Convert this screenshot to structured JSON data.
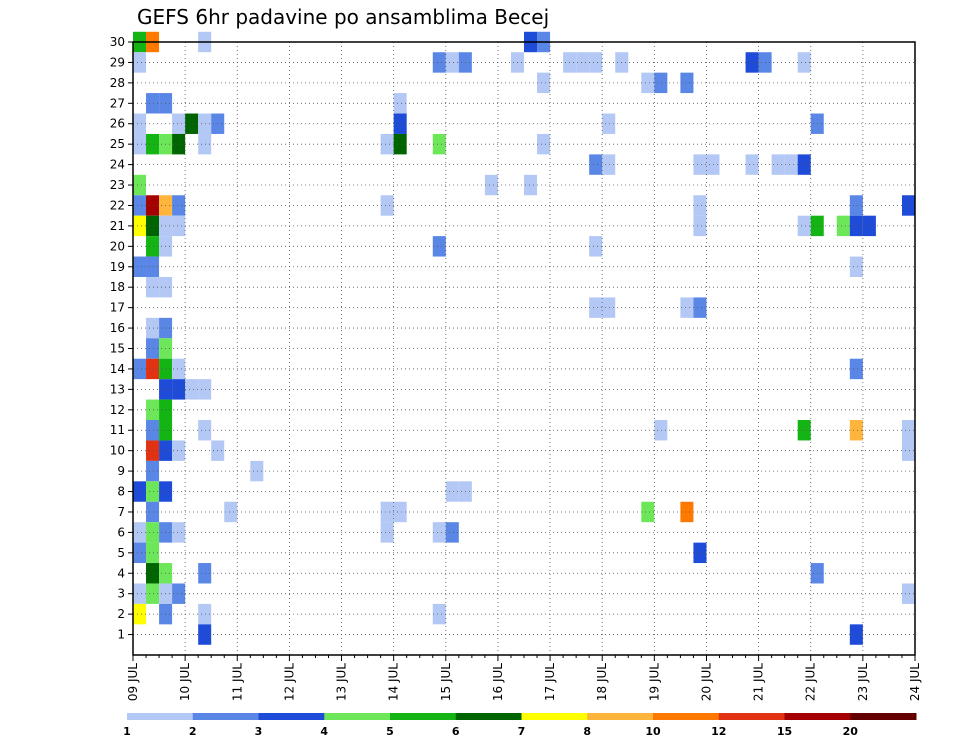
{
  "chart_data": {
    "type": "heatmap",
    "title": "GEFS 6hr padavine po ansamblima Becej",
    "xlabel": "",
    "ylabel": "",
    "x_ticks": [
      "09 JUL",
      "10 JUL",
      "11 JUL",
      "12 JUL",
      "13 JUL",
      "14 JUL",
      "15 JUL",
      "16 JUL",
      "17 JUL",
      "18 JUL",
      "19 JUL",
      "20 JUL",
      "21 JUL",
      "22 JUL",
      "23 JUL",
      "24 JUL"
    ],
    "y_ticks": [
      "1",
      "2",
      "3",
      "4",
      "5",
      "6",
      "7",
      "8",
      "9",
      "10",
      "11",
      "12",
      "13",
      "14",
      "15",
      "16",
      "17",
      "18",
      "19",
      "20",
      "21",
      "22",
      "23",
      "24",
      "25",
      "26",
      "27",
      "28",
      "29",
      "30"
    ],
    "xlim_days": [
      0,
      15
    ],
    "ylim_members": [
      0,
      30
    ],
    "grid": "dotted",
    "levels": [
      "1",
      "2",
      "3",
      "4",
      "5",
      "6",
      "7",
      "8",
      "10",
      "12",
      "15",
      "20"
    ],
    "colors": [
      "#b4c8f5",
      "#5a87e6",
      "#1e4bd7",
      "#6ee65a",
      "#14b414",
      "#006400",
      "#ffff00",
      "#ffb43c",
      "#ff7800",
      "#e13214",
      "#a50000",
      "#640000"
    ],
    "cells": [
      {
        "member": 30,
        "day": 0.125,
        "level": 4
      },
      {
        "member": 30,
        "day": 0.375,
        "level": 8
      },
      {
        "member": 30,
        "day": 1.375,
        "level": 0
      },
      {
        "member": 30,
        "day": 7.625,
        "level": 2
      },
      {
        "member": 30,
        "day": 7.875,
        "level": 1
      },
      {
        "member": 29,
        "day": 0.125,
        "level": 0
      },
      {
        "member": 29,
        "day": 5.875,
        "level": 1
      },
      {
        "member": 29,
        "day": 6.125,
        "level": 0
      },
      {
        "member": 29,
        "day": 6.375,
        "level": 1
      },
      {
        "member": 29,
        "day": 7.375,
        "level": 0
      },
      {
        "member": 29,
        "day": 8.375,
        "level": 0
      },
      {
        "member": 29,
        "day": 8.625,
        "level": 0
      },
      {
        "member": 29,
        "day": 8.875,
        "level": 0
      },
      {
        "member": 29,
        "day": 9.375,
        "level": 0
      },
      {
        "member": 29,
        "day": 11.875,
        "level": 2
      },
      {
        "member": 29,
        "day": 12.125,
        "level": 1
      },
      {
        "member": 29,
        "day": 12.875,
        "level": 0
      },
      {
        "member": 28,
        "day": 7.875,
        "level": 0
      },
      {
        "member": 28,
        "day": 9.875,
        "level": 0
      },
      {
        "member": 28,
        "day": 10.125,
        "level": 1
      },
      {
        "member": 28,
        "day": 10.625,
        "level": 1
      },
      {
        "member": 27,
        "day": 0.375,
        "level": 1
      },
      {
        "member": 27,
        "day": 0.625,
        "level": 1
      },
      {
        "member": 27,
        "day": 5.125,
        "level": 0
      },
      {
        "member": 26,
        "day": 0.125,
        "level": 0
      },
      {
        "member": 26,
        "day": 0.875,
        "level": 0
      },
      {
        "member": 26,
        "day": 1.125,
        "level": 5
      },
      {
        "member": 26,
        "day": 1.375,
        "level": 0
      },
      {
        "member": 26,
        "day": 1.625,
        "level": 1
      },
      {
        "member": 26,
        "day": 5.125,
        "level": 2
      },
      {
        "member": 26,
        "day": 9.125,
        "level": 0
      },
      {
        "member": 26,
        "day": 13.125,
        "level": 1
      },
      {
        "member": 25,
        "day": 0.125,
        "level": 0
      },
      {
        "member": 25,
        "day": 0.375,
        "level": 4
      },
      {
        "member": 25,
        "day": 0.625,
        "level": 3
      },
      {
        "member": 25,
        "day": 0.875,
        "level": 5
      },
      {
        "member": 25,
        "day": 1.375,
        "level": 0
      },
      {
        "member": 25,
        "day": 4.875,
        "level": 0
      },
      {
        "member": 25,
        "day": 5.125,
        "level": 5
      },
      {
        "member": 25,
        "day": 5.875,
        "level": 3
      },
      {
        "member": 25,
        "day": 7.875,
        "level": 0
      },
      {
        "member": 24,
        "day": 8.875,
        "level": 1
      },
      {
        "member": 24,
        "day": 9.125,
        "level": 0
      },
      {
        "member": 24,
        "day": 10.875,
        "level": 0
      },
      {
        "member": 24,
        "day": 11.125,
        "level": 0
      },
      {
        "member": 24,
        "day": 11.875,
        "level": 0
      },
      {
        "member": 24,
        "day": 12.375,
        "level": 0
      },
      {
        "member": 24,
        "day": 12.625,
        "level": 0
      },
      {
        "member": 24,
        "day": 12.875,
        "level": 2
      },
      {
        "member": 23,
        "day": 0.125,
        "level": 3
      },
      {
        "member": 23,
        "day": 6.875,
        "level": 0
      },
      {
        "member": 23,
        "day": 7.625,
        "level": 0
      },
      {
        "member": 22,
        "day": 0.125,
        "level": 1
      },
      {
        "member": 22,
        "day": 0.375,
        "level": 10
      },
      {
        "member": 22,
        "day": 0.625,
        "level": 7
      },
      {
        "member": 22,
        "day": 0.875,
        "level": 1
      },
      {
        "member": 22,
        "day": 4.875,
        "level": 0
      },
      {
        "member": 22,
        "day": 10.875,
        "level": 0
      },
      {
        "member": 22,
        "day": 13.875,
        "level": 1
      },
      {
        "member": 22,
        "day": 14.875,
        "level": 2
      },
      {
        "member": 21,
        "day": 0.125,
        "level": 6
      },
      {
        "member": 21,
        "day": 0.375,
        "level": 5
      },
      {
        "member": 21,
        "day": 0.625,
        "level": 0
      },
      {
        "member": 21,
        "day": 0.875,
        "level": 0
      },
      {
        "member": 21,
        "day": 10.875,
        "level": 0
      },
      {
        "member": 21,
        "day": 12.875,
        "level": 0
      },
      {
        "member": 21,
        "day": 13.125,
        "level": 4
      },
      {
        "member": 21,
        "day": 13.625,
        "level": 3
      },
      {
        "member": 21,
        "day": 13.875,
        "level": 2
      },
      {
        "member": 21,
        "day": 14.125,
        "level": 2
      },
      {
        "member": 20,
        "day": 0.375,
        "level": 4
      },
      {
        "member": 20,
        "day": 0.625,
        "level": 0
      },
      {
        "member": 20,
        "day": 5.875,
        "level": 1
      },
      {
        "member": 20,
        "day": 8.875,
        "level": 0
      },
      {
        "member": 19,
        "day": 0.125,
        "level": 1
      },
      {
        "member": 19,
        "day": 0.375,
        "level": 1
      },
      {
        "member": 19,
        "day": 13.875,
        "level": 0
      },
      {
        "member": 18,
        "day": 0.375,
        "level": 0
      },
      {
        "member": 18,
        "day": 0.625,
        "level": 0
      },
      {
        "member": 17,
        "day": 8.875,
        "level": 0
      },
      {
        "member": 17,
        "day": 9.125,
        "level": 0
      },
      {
        "member": 17,
        "day": 10.625,
        "level": 0
      },
      {
        "member": 17,
        "day": 10.875,
        "level": 1
      },
      {
        "member": 16,
        "day": 0.375,
        "level": 0
      },
      {
        "member": 16,
        "day": 0.625,
        "level": 1
      },
      {
        "member": 15,
        "day": 0.375,
        "level": 1
      },
      {
        "member": 15,
        "day": 0.625,
        "level": 3
      },
      {
        "member": 14,
        "day": 0.125,
        "level": 1
      },
      {
        "member": 14,
        "day": 0.375,
        "level": 9
      },
      {
        "member": 14,
        "day": 0.625,
        "level": 4
      },
      {
        "member": 14,
        "day": 0.875,
        "level": 0
      },
      {
        "member": 14,
        "day": 13.875,
        "level": 1
      },
      {
        "member": 13,
        "day": 0.625,
        "level": 2
      },
      {
        "member": 13,
        "day": 0.875,
        "level": 2
      },
      {
        "member": 13,
        "day": 1.125,
        "level": 0
      },
      {
        "member": 13,
        "day": 1.375,
        "level": 0
      },
      {
        "member": 12,
        "day": 0.375,
        "level": 3
      },
      {
        "member": 12,
        "day": 0.625,
        "level": 4
      },
      {
        "member": 11,
        "day": 0.375,
        "level": 1
      },
      {
        "member": 11,
        "day": 0.625,
        "level": 4
      },
      {
        "member": 11,
        "day": 1.375,
        "level": 0
      },
      {
        "member": 11,
        "day": 10.125,
        "level": 0
      },
      {
        "member": 11,
        "day": 12.875,
        "level": 4
      },
      {
        "member": 11,
        "day": 13.875,
        "level": 7
      },
      {
        "member": 11,
        "day": 14.875,
        "level": 0
      },
      {
        "member": 10,
        "day": 0.375,
        "level": 9
      },
      {
        "member": 10,
        "day": 0.625,
        "level": 2
      },
      {
        "member": 10,
        "day": 0.875,
        "level": 0
      },
      {
        "member": 10,
        "day": 1.625,
        "level": 0
      },
      {
        "member": 10,
        "day": 14.875,
        "level": 0
      },
      {
        "member": 9,
        "day": 0.375,
        "level": 1
      },
      {
        "member": 9,
        "day": 2.375,
        "level": 0
      },
      {
        "member": 8,
        "day": 0.125,
        "level": 2
      },
      {
        "member": 8,
        "day": 0.375,
        "level": 3
      },
      {
        "member": 8,
        "day": 0.625,
        "level": 2
      },
      {
        "member": 8,
        "day": 6.125,
        "level": 0
      },
      {
        "member": 8,
        "day": 6.375,
        "level": 0
      },
      {
        "member": 7,
        "day": 0.375,
        "level": 1
      },
      {
        "member": 7,
        "day": 1.875,
        "level": 0
      },
      {
        "member": 7,
        "day": 4.875,
        "level": 0
      },
      {
        "member": 7,
        "day": 5.125,
        "level": 0
      },
      {
        "member": 7,
        "day": 9.875,
        "level": 3
      },
      {
        "member": 7,
        "day": 10.625,
        "level": 8
      },
      {
        "member": 6,
        "day": 0.125,
        "level": 0
      },
      {
        "member": 6,
        "day": 0.375,
        "level": 3
      },
      {
        "member": 6,
        "day": 0.625,
        "level": 1
      },
      {
        "member": 6,
        "day": 0.875,
        "level": 0
      },
      {
        "member": 6,
        "day": 4.875,
        "level": 0
      },
      {
        "member": 6,
        "day": 5.875,
        "level": 0
      },
      {
        "member": 6,
        "day": 6.125,
        "level": 1
      },
      {
        "member": 5,
        "day": 0.125,
        "level": 1
      },
      {
        "member": 5,
        "day": 0.375,
        "level": 3
      },
      {
        "member": 5,
        "day": 10.875,
        "level": 2
      },
      {
        "member": 4,
        "day": 0.375,
        "level": 5
      },
      {
        "member": 4,
        "day": 0.625,
        "level": 3
      },
      {
        "member": 4,
        "day": 1.375,
        "level": 1
      },
      {
        "member": 4,
        "day": 13.125,
        "level": 1
      },
      {
        "member": 3,
        "day": 0.125,
        "level": 0
      },
      {
        "member": 3,
        "day": 0.375,
        "level": 3
      },
      {
        "member": 3,
        "day": 0.625,
        "level": 0
      },
      {
        "member": 3,
        "day": 0.875,
        "level": 1
      },
      {
        "member": 3,
        "day": 14.875,
        "level": 0
      },
      {
        "member": 2,
        "day": 0.125,
        "level": 6
      },
      {
        "member": 2,
        "day": 0.625,
        "level": 1
      },
      {
        "member": 2,
        "day": 1.375,
        "level": 0
      },
      {
        "member": 2,
        "day": 5.875,
        "level": 0
      },
      {
        "member": 1,
        "day": 1.375,
        "level": 2
      },
      {
        "member": 1,
        "day": 13.875,
        "level": 2
      }
    ]
  }
}
